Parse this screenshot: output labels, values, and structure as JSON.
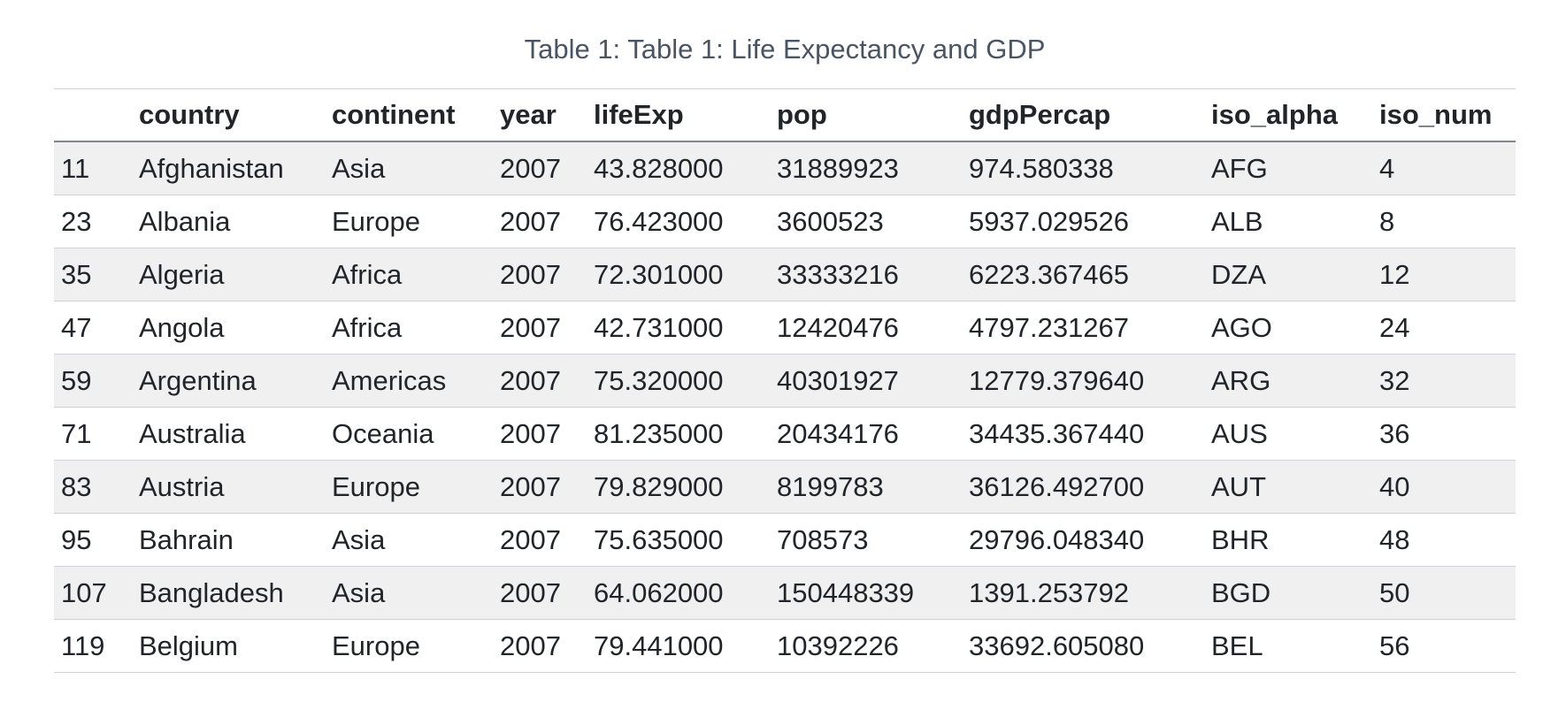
{
  "caption": "Table 1: Table 1: Life Expectancy and GDP",
  "columns": [
    "",
    "country",
    "continent",
    "year",
    "lifeExp",
    "pop",
    "gdpPercap",
    "iso_alpha",
    "iso_num"
  ],
  "rows": [
    [
      "11",
      "Afghanistan",
      "Asia",
      "2007",
      "43.828000",
      "31889923",
      "974.580338",
      "AFG",
      "4"
    ],
    [
      "23",
      "Albania",
      "Europe",
      "2007",
      "76.423000",
      "3600523",
      "5937.029526",
      "ALB",
      "8"
    ],
    [
      "35",
      "Algeria",
      "Africa",
      "2007",
      "72.301000",
      "33333216",
      "6223.367465",
      "DZA",
      "12"
    ],
    [
      "47",
      "Angola",
      "Africa",
      "2007",
      "42.731000",
      "12420476",
      "4797.231267",
      "AGO",
      "24"
    ],
    [
      "59",
      "Argentina",
      "Americas",
      "2007",
      "75.320000",
      "40301927",
      "12779.379640",
      "ARG",
      "32"
    ],
    [
      "71",
      "Australia",
      "Oceania",
      "2007",
      "81.235000",
      "20434176",
      "34435.367440",
      "AUS",
      "36"
    ],
    [
      "83",
      "Austria",
      "Europe",
      "2007",
      "79.829000",
      "8199783",
      "36126.492700",
      "AUT",
      "40"
    ],
    [
      "95",
      "Bahrain",
      "Asia",
      "2007",
      "75.635000",
      "708573",
      "29796.048340",
      "BHR",
      "48"
    ],
    [
      "107",
      "Bangladesh",
      "Asia",
      "2007",
      "64.062000",
      "150448339",
      "1391.253792",
      "BGD",
      "50"
    ],
    [
      "119",
      "Belgium",
      "Europe",
      "2007",
      "79.441000",
      "10392226",
      "33692.605080",
      "BEL",
      "56"
    ]
  ]
}
